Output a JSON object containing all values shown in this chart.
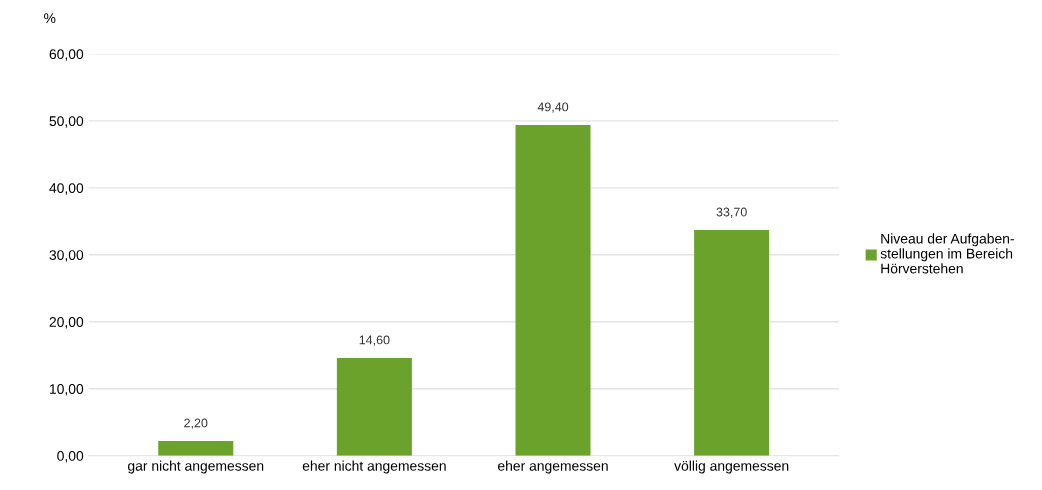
{
  "chart_data": {
    "type": "bar",
    "ylabel": "%",
    "categories": [
      "gar nicht angemessen",
      "eher nicht angemessen",
      "eher angemessen",
      "völlig angemessen"
    ],
    "series": [
      {
        "name": "Niveau der Aufgaben-\nstellungen im Bereich\nHörverstehen",
        "color": "#6aa22c",
        "values": [
          2.2,
          14.6,
          49.4,
          33.7
        ],
        "value_labels": [
          "2,20",
          "14,60",
          "49,40",
          "33,70"
        ]
      }
    ],
    "ylim": [
      0,
      60
    ],
    "yticks": [
      {
        "value": 0,
        "label": "0,00"
      },
      {
        "value": 10,
        "label": "10,00"
      },
      {
        "value": 20,
        "label": "20,00"
      },
      {
        "value": 30,
        "label": "30,00"
      },
      {
        "value": 40,
        "label": "40,00"
      },
      {
        "value": 50,
        "label": "50,00"
      },
      {
        "value": 60,
        "label": "60,00"
      }
    ],
    "grid": "y",
    "legend": "right"
  }
}
